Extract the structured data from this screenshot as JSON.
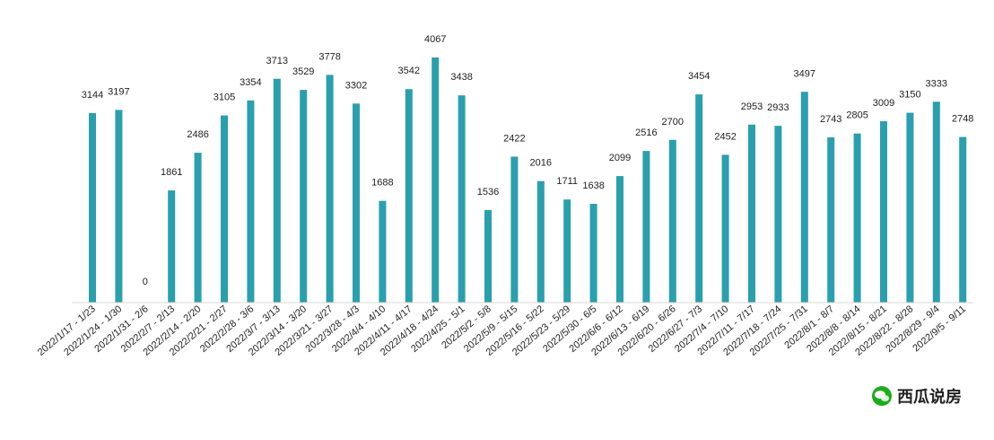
{
  "chart_data": {
    "type": "bar",
    "categories": [
      "2022/1/17 - 1/23",
      "2022/1/24 - 1/30",
      "2022/1/31 - 2/6",
      "2022/2/7 - 2/13",
      "2022/2/14 - 2/20",
      "2022/2/21 - 2/27",
      "2022/2/28 - 3/6",
      "2022/3/7 - 3/13",
      "2022/3/14 - 3/20",
      "2022/3/21 - 3/27",
      "2022/3/28 - 4/3",
      "2022/4/4 - 4/10",
      "2022/4/11 - 4/17",
      "2022/4/18 - 4/24",
      "2022/4/25 - 5/1",
      "2022/5/2 - 5/8",
      "2022/5/9 - 5/15",
      "2022/5/16 - 5/22",
      "2022/5/23 - 5/29",
      "2022/5/30 - 6/5",
      "2022/6/6 - 6/12",
      "2022/6/13 - 6/19",
      "2022/6/20 - 6/26",
      "2022/6/27 - 7/3",
      "2022/7/4 - 7/10",
      "2022/7/11 - 7/17",
      "2022/7/18 - 7/24",
      "2022/7/25 - 7/31",
      "2022/8/1 - 8/7",
      "2022/8/8 - 8/14",
      "2022/8/15 - 8/21",
      "2022/8/22 - 8/28",
      "2022/8/29 - 9/4",
      "2022/9/5 - 9/11"
    ],
    "values": [
      3144,
      3197,
      0,
      1861,
      2486,
      3105,
      3354,
      3713,
      3529,
      3778,
      3302,
      1688,
      3542,
      4067,
      3438,
      1536,
      2422,
      2016,
      1711,
      1638,
      2099,
      2516,
      2700,
      3454,
      2452,
      2953,
      2933,
      3497,
      2743,
      2805,
      3009,
      3150,
      3333,
      2748
    ],
    "ylim": [
      0,
      4067
    ],
    "grid": false,
    "legend": "none",
    "bar_color": "#2a9fae"
  },
  "watermark": {
    "text": "西瓜说房"
  }
}
